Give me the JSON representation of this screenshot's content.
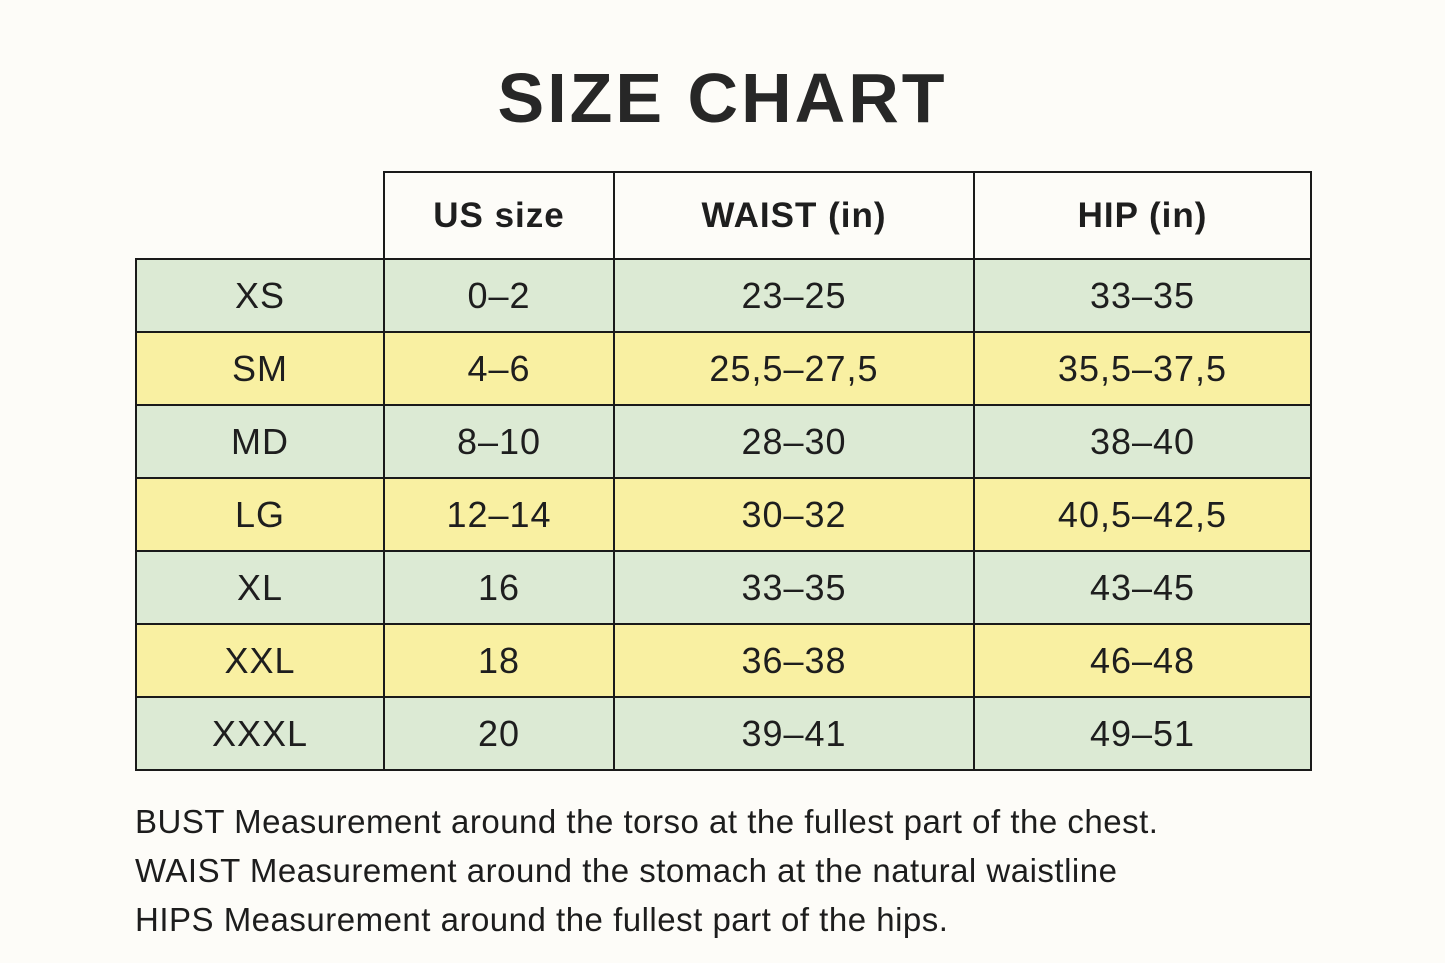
{
  "title": "SIZE CHART",
  "table": {
    "corner_label": "",
    "headers": [
      "US size",
      "WAIST (in)",
      "HIP (in)"
    ],
    "rows": [
      {
        "size": "XS",
        "us": "0–2",
        "waist": "23–25",
        "hip": "33–35",
        "row_color": "green"
      },
      {
        "size": "SM",
        "us": "4–6",
        "waist": "25,5–27,5",
        "hip": "35,5–37,5",
        "row_color": "yellow"
      },
      {
        "size": "MD",
        "us": "8–10",
        "waist": "28–30",
        "hip": "38–40",
        "row_color": "green"
      },
      {
        "size": "LG",
        "us": "12–14",
        "waist": "30–32",
        "hip": "40,5–42,5",
        "row_color": "yellow"
      },
      {
        "size": "XL",
        "us": "16",
        "waist": "33–35",
        "hip": "43–45",
        "row_color": "green"
      },
      {
        "size": "XXL",
        "us": "18",
        "waist": "36–38",
        "hip": "46–48",
        "row_color": "yellow"
      },
      {
        "size": "XXXL",
        "us": "20",
        "waist": "39–41",
        "hip": "49–51",
        "row_color": "green"
      }
    ]
  },
  "footnotes": {
    "bust": "BUST Measurement around the torso at the fullest part of the chest.",
    "waist": "WAIST Measurement around the stomach at the natural waistline",
    "hips": "HIPS Measurement around the fullest part of the hips."
  },
  "colors": {
    "row_green": "#dcead4",
    "row_yellow": "#f9f0a2",
    "border": "#1a1a1a",
    "background": "#fdfcf8",
    "text": "#1e1e1e"
  }
}
